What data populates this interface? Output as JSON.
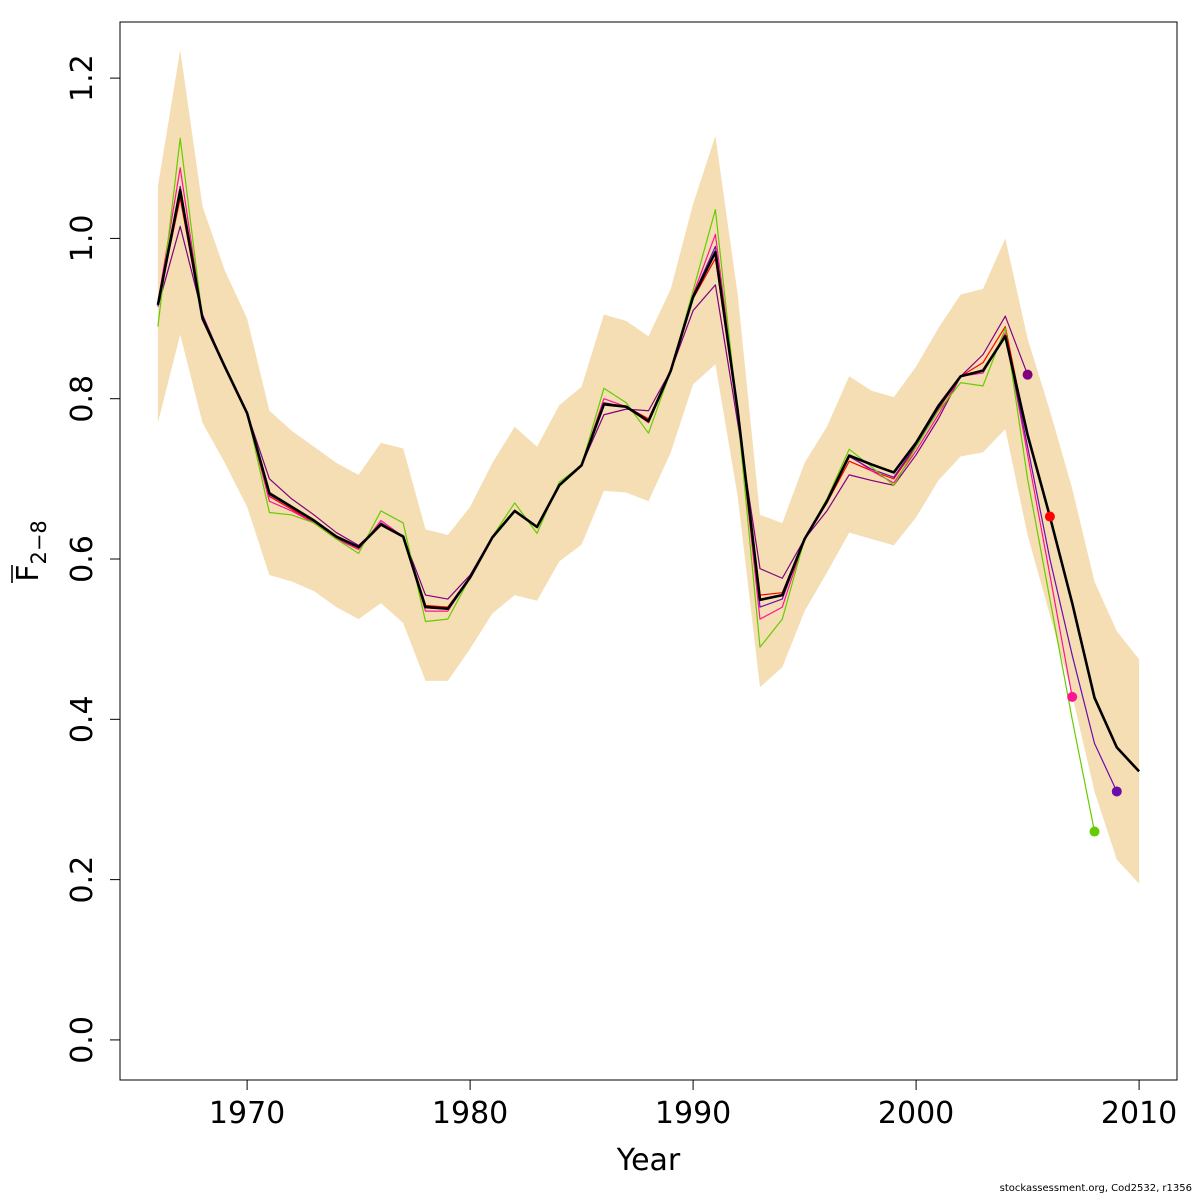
{
  "chart_data": {
    "type": "line",
    "xlabel": "Year",
    "ylabel_base": "F",
    "ylabel_sub": "2−8",
    "xlim": [
      1964.3,
      2011.7
    ],
    "ylim": [
      -0.05,
      1.27
    ],
    "xticks": [
      1970,
      1980,
      1990,
      2000,
      2010
    ],
    "xtick_labels": [
      "1970",
      "1980",
      "1990",
      "2000",
      "2010"
    ],
    "yticks": [
      0.0,
      0.2,
      0.4,
      0.6,
      0.8,
      1.0,
      1.2
    ],
    "ytick_labels": [
      "0.0",
      "0.2",
      "0.4",
      "0.6",
      "0.8",
      "1.0",
      "1.2"
    ],
    "grid": false,
    "confidence_band": {
      "color": "#F5DEB3",
      "x": [
        1966,
        1967,
        1968,
        1969,
        1970,
        1971,
        1972,
        1973,
        1974,
        1975,
        1976,
        1977,
        1978,
        1979,
        1980,
        1981,
        1982,
        1983,
        1984,
        1985,
        1986,
        1987,
        1988,
        1989,
        1990,
        1991,
        1992,
        1993,
        1994,
        1995,
        1996,
        1997,
        1998,
        1999,
        2000,
        2001,
        2002,
        2003,
        2004,
        2005,
        2006,
        2007,
        2008,
        2009,
        2010
      ],
      "lower": [
        0.77,
        0.88,
        0.77,
        0.72,
        0.665,
        0.58,
        0.572,
        0.56,
        0.54,
        0.525,
        0.545,
        0.52,
        0.448,
        0.448,
        0.488,
        0.532,
        0.555,
        0.548,
        0.597,
        0.618,
        0.685,
        0.683,
        0.672,
        0.733,
        0.818,
        0.843,
        0.678,
        0.44,
        0.465,
        0.535,
        0.583,
        0.633,
        0.625,
        0.617,
        0.652,
        0.698,
        0.728,
        0.733,
        0.762,
        0.63,
        0.53,
        0.43,
        0.31,
        0.225,
        0.195
      ],
      "upper": [
        1.065,
        1.235,
        1.04,
        0.96,
        0.9,
        0.785,
        0.76,
        0.74,
        0.72,
        0.705,
        0.745,
        0.738,
        0.637,
        0.63,
        0.665,
        0.72,
        0.765,
        0.74,
        0.792,
        0.815,
        0.905,
        0.897,
        0.878,
        0.937,
        1.043,
        1.128,
        0.93,
        0.655,
        0.645,
        0.72,
        0.765,
        0.828,
        0.81,
        0.802,
        0.84,
        0.888,
        0.93,
        0.937,
        1.0,
        0.875,
        0.785,
        0.688,
        0.572,
        0.51,
        0.475
      ]
    },
    "series": [
      {
        "color": "#000000",
        "width": 2.6,
        "x": [
          1966,
          1967,
          1968,
          1969,
          1970,
          1971,
          1972,
          1973,
          1974,
          1975,
          1976,
          1977,
          1978,
          1979,
          1980,
          1981,
          1982,
          1983,
          1984,
          1985,
          1986,
          1987,
          1988,
          1989,
          1990,
          1991,
          1992,
          1993,
          1994,
          1995,
          1996,
          1997,
          1998,
          1999,
          2000,
          2001,
          2002,
          2003,
          2004,
          2005,
          2006,
          2007,
          2008,
          2009,
          2010
        ],
        "y": [
          0.917,
          1.06,
          0.9,
          0.84,
          0.782,
          0.682,
          0.665,
          0.648,
          0.628,
          0.615,
          0.643,
          0.628,
          0.54,
          0.538,
          0.577,
          0.627,
          0.66,
          0.64,
          0.692,
          0.717,
          0.793,
          0.79,
          0.772,
          0.835,
          0.927,
          0.983,
          0.785,
          0.549,
          0.555,
          0.625,
          0.672,
          0.729,
          0.718,
          0.708,
          0.745,
          0.791,
          0.828,
          0.835,
          0.878,
          0.755,
          0.653,
          0.545,
          0.427,
          0.365,
          0.335
        ]
      },
      {
        "color": "#800080",
        "width": 1.2,
        "x": [
          1966,
          1967,
          1968,
          1969,
          1970,
          1971,
          1972,
          1973,
          1974,
          1975,
          1976,
          1977,
          1978,
          1979,
          1980,
          1981,
          1982,
          1983,
          1984,
          1985,
          1986,
          1987,
          1988,
          1989,
          1990,
          1991,
          1992,
          1993,
          1994,
          1995,
          1996,
          1997,
          1998,
          1999,
          2000,
          2001,
          2002,
          2003,
          2004,
          2005
        ],
        "y": [
          0.915,
          1.015,
          0.905,
          0.84,
          0.782,
          0.7,
          0.675,
          0.655,
          0.633,
          0.617,
          0.643,
          0.628,
          0.555,
          0.55,
          0.58,
          0.628,
          0.66,
          0.64,
          0.692,
          0.717,
          0.78,
          0.787,
          0.785,
          0.835,
          0.91,
          0.942,
          0.77,
          0.588,
          0.576,
          0.625,
          0.66,
          0.705,
          0.698,
          0.692,
          0.73,
          0.775,
          0.828,
          0.855,
          0.903,
          0.83
        ]
      },
      {
        "color": "#FF0000",
        "width": 1.2,
        "x": [
          1966,
          1967,
          1968,
          1969,
          1970,
          1971,
          1972,
          1973,
          1974,
          1975,
          1976,
          1977,
          1978,
          1979,
          1980,
          1981,
          1982,
          1983,
          1984,
          1985,
          1986,
          1987,
          1988,
          1989,
          1990,
          1991,
          1992,
          1993,
          1994,
          1995,
          1996,
          1997,
          1998,
          1999,
          2000,
          2001,
          2002,
          2003,
          2004,
          2005,
          2006
        ],
        "y": [
          0.918,
          1.05,
          0.9,
          0.84,
          0.782,
          0.678,
          0.662,
          0.645,
          0.626,
          0.612,
          0.645,
          0.628,
          0.542,
          0.54,
          0.577,
          0.627,
          0.66,
          0.64,
          0.692,
          0.717,
          0.793,
          0.79,
          0.775,
          0.835,
          0.925,
          0.975,
          0.785,
          0.555,
          0.558,
          0.625,
          0.67,
          0.722,
          0.71,
          0.7,
          0.74,
          0.787,
          0.828,
          0.845,
          0.89,
          0.752,
          0.653
        ]
      },
      {
        "color": "#FF1493",
        "width": 1.2,
        "x": [
          1966,
          1967,
          1968,
          1969,
          1970,
          1971,
          1972,
          1973,
          1974,
          1975,
          1976,
          1977,
          1978,
          1979,
          1980,
          1981,
          1982,
          1983,
          1984,
          1985,
          1986,
          1987,
          1988,
          1989,
          1990,
          1991,
          1992,
          1993,
          1994,
          1995,
          1996,
          1997,
          1998,
          1999,
          2000,
          2001,
          2002,
          2003,
          2004,
          2005,
          2006,
          2007
        ],
        "y": [
          0.92,
          1.088,
          0.9,
          0.84,
          0.782,
          0.672,
          0.66,
          0.645,
          0.625,
          0.612,
          0.648,
          0.628,
          0.535,
          0.535,
          0.577,
          0.628,
          0.661,
          0.64,
          0.692,
          0.717,
          0.8,
          0.79,
          0.77,
          0.835,
          0.93,
          1.005,
          0.785,
          0.525,
          0.54,
          0.625,
          0.67,
          0.73,
          0.71,
          0.695,
          0.735,
          0.78,
          0.828,
          0.832,
          0.882,
          0.73,
          0.58,
          0.428
        ]
      },
      {
        "color": "#6A0DAD",
        "width": 1.2,
        "x": [
          1966,
          1967,
          1968,
          1969,
          1970,
          1971,
          1972,
          1973,
          1974,
          1975,
          1976,
          1977,
          1978,
          1979,
          1980,
          1981,
          1982,
          1983,
          1984,
          1985,
          1986,
          1987,
          1988,
          1989,
          1990,
          1991,
          1992,
          1993,
          1994,
          1995,
          1996,
          1997,
          1998,
          1999,
          2000,
          2001,
          2002,
          2003,
          2004,
          2005,
          2006,
          2007,
          2008,
          2009
        ],
        "y": [
          0.916,
          1.065,
          0.9,
          0.84,
          0.782,
          0.68,
          0.664,
          0.647,
          0.627,
          0.614,
          0.645,
          0.628,
          0.54,
          0.538,
          0.577,
          0.627,
          0.66,
          0.64,
          0.692,
          0.717,
          0.795,
          0.79,
          0.772,
          0.835,
          0.928,
          0.99,
          0.785,
          0.54,
          0.55,
          0.625,
          0.671,
          0.728,
          0.712,
          0.702,
          0.742,
          0.788,
          0.828,
          0.836,
          0.878,
          0.74,
          0.6,
          0.48,
          0.37,
          0.31
        ]
      },
      {
        "color": "#66CC00",
        "width": 1.2,
        "x": [
          1966,
          1967,
          1968,
          1969,
          1970,
          1971,
          1972,
          1973,
          1974,
          1975,
          1976,
          1977,
          1978,
          1979,
          1980,
          1981,
          1982,
          1983,
          1984,
          1985,
          1986,
          1987,
          1988,
          1989,
          1990,
          1991,
          1992,
          1993,
          1994,
          1995,
          1996,
          1997,
          1998,
          1999,
          2000,
          2001,
          2002,
          2003,
          2004,
          2005,
          2006,
          2007,
          2008
        ],
        "y": [
          0.89,
          1.125,
          0.9,
          0.84,
          0.782,
          0.658,
          0.655,
          0.645,
          0.625,
          0.607,
          0.66,
          0.645,
          0.522,
          0.525,
          0.577,
          0.628,
          0.67,
          0.632,
          0.696,
          0.717,
          0.813,
          0.795,
          0.757,
          0.835,
          0.935,
          1.036,
          0.78,
          0.49,
          0.525,
          0.625,
          0.675,
          0.737,
          0.715,
          0.692,
          0.74,
          0.785,
          0.82,
          0.816,
          0.888,
          0.7,
          0.55,
          0.4,
          0.26
        ]
      }
    ],
    "endpoints": [
      {
        "x": 2005,
        "y": 0.83,
        "color": "#800080"
      },
      {
        "x": 2006,
        "y": 0.653,
        "color": "#FF0000"
      },
      {
        "x": 2007,
        "y": 0.428,
        "color": "#FF1493"
      },
      {
        "x": 2008,
        "y": 0.26,
        "color": "#66CC00"
      },
      {
        "x": 2009,
        "y": 0.31,
        "color": "#6A0DAD"
      }
    ]
  },
  "footer": "stockassessment.org, Cod2532, r1356"
}
